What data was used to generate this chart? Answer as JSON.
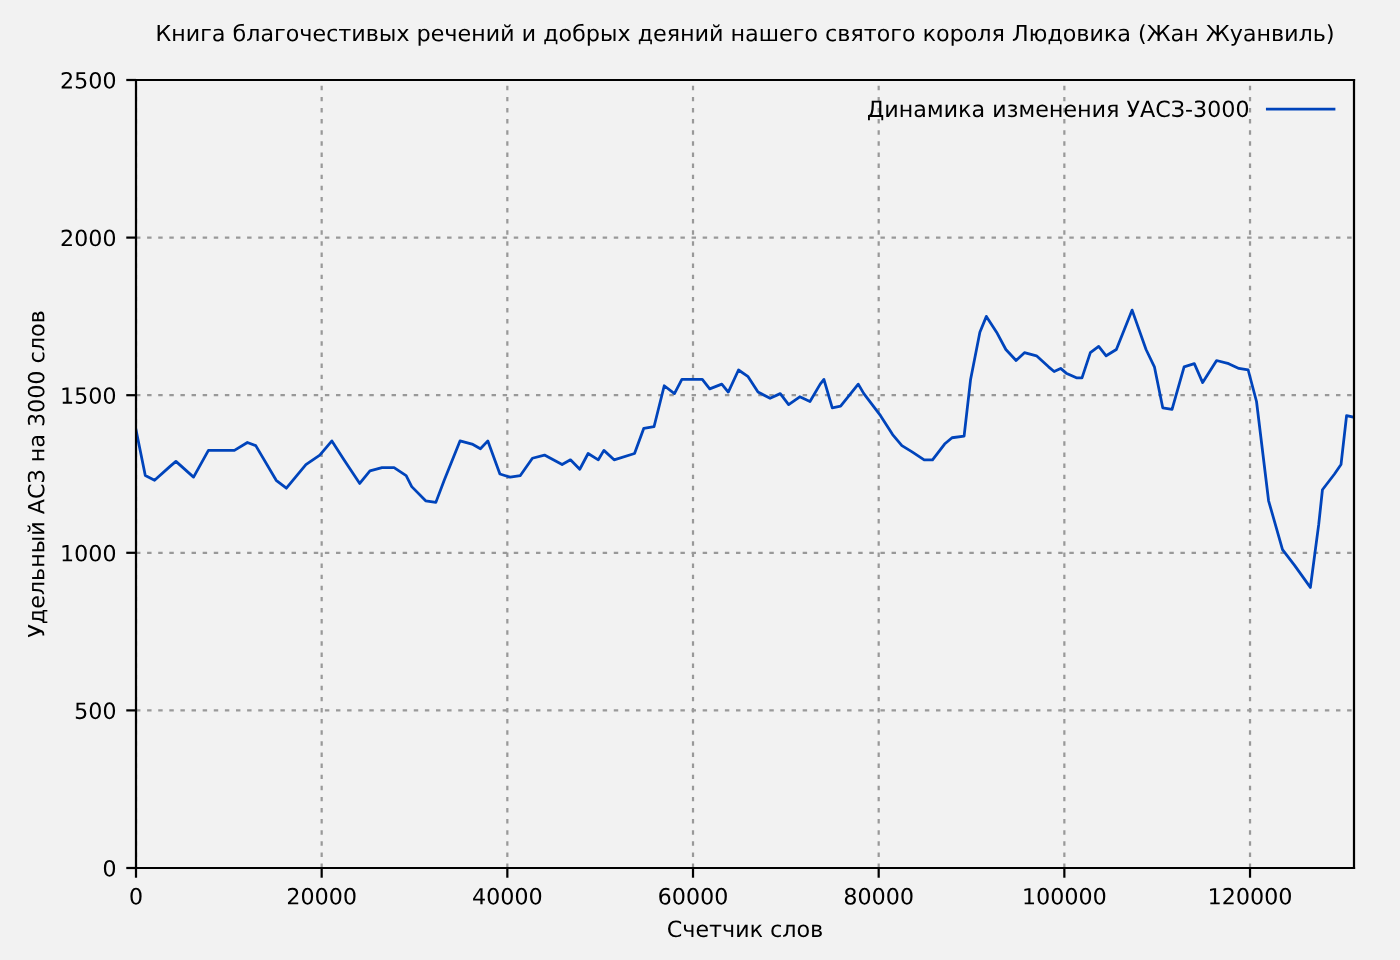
{
  "chart_data": {
    "type": "line",
    "title": "Книга благочестивых речений и добрых деяний нашего святого короля Людовика (Жан Жуанвиль)",
    "xlabel": "Счетчик слов",
    "ylabel": "Удельный АСЗ на 3000 слов",
    "xlim": [
      0,
      131200
    ],
    "ylim": [
      0,
      2500
    ],
    "xticks": [
      0,
      20000,
      40000,
      60000,
      80000,
      100000,
      120000
    ],
    "yticks": [
      0,
      500,
      1000,
      1500,
      2000,
      2500
    ],
    "grid": true,
    "legend": "top right",
    "marker": "none",
    "line_style": "solid",
    "series": [
      {
        "name": "Динамика изменения УАСЗ-3000",
        "color": "#0044bb",
        "x": [
          0,
          1000,
          2000,
          3700,
          4300,
          6200,
          7800,
          10600,
          12000,
          12900,
          15100,
          16200,
          18300,
          19800,
          21100,
          22400,
          24100,
          25200,
          26500,
          27800,
          29100,
          29700,
          31200,
          32300,
          33200,
          34900,
          36200,
          37100,
          37900,
          39200,
          40300,
          41400,
          42700,
          44000,
          45900,
          46800,
          47800,
          48700,
          49800,
          50400,
          51500,
          53700,
          54700,
          55800,
          56900,
          58000,
          58800,
          61000,
          61800,
          63100,
          63800,
          64900,
          65900,
          67000,
          68300,
          69400,
          70300,
          71500,
          72600,
          73700,
          74100,
          75000,
          75900,
          77800,
          78400,
          80200,
          81500,
          82500,
          83600,
          84900,
          85800,
          87100,
          87900,
          89200,
          89900,
          90900,
          91600,
          92700,
          93700,
          94800,
          95700,
          97000,
          98300,
          98900,
          99600,
          100200,
          101300,
          101900,
          102800,
          103700,
          104500,
          105600,
          107300,
          108800,
          109700,
          110600,
          111600,
          112900,
          114000,
          114900,
          116400,
          117700,
          118800,
          119800,
          120700,
          122000,
          123500,
          124800,
          125900,
          126500,
          127400,
          127800,
          129100,
          129800,
          130400,
          131200
        ],
        "values": [
          1390,
          1245,
          1230,
          1275,
          1290,
          1240,
          1325,
          1325,
          1350,
          1340,
          1230,
          1205,
          1280,
          1310,
          1355,
          1295,
          1220,
          1260,
          1270,
          1270,
          1245,
          1210,
          1165,
          1160,
          1230,
          1355,
          1345,
          1330,
          1355,
          1250,
          1240,
          1245,
          1300,
          1310,
          1280,
          1295,
          1265,
          1315,
          1295,
          1325,
          1295,
          1315,
          1395,
          1400,
          1530,
          1505,
          1550,
          1550,
          1520,
          1535,
          1510,
          1580,
          1560,
          1510,
          1490,
          1505,
          1470,
          1495,
          1480,
          1535,
          1550,
          1460,
          1465,
          1535,
          1505,
          1435,
          1375,
          1340,
          1320,
          1295,
          1295,
          1345,
          1365,
          1370,
          1550,
          1700,
          1750,
          1700,
          1645,
          1610,
          1635,
          1625,
          1590,
          1575,
          1585,
          1570,
          1555,
          1555,
          1635,
          1655,
          1625,
          1645,
          1770,
          1645,
          1590,
          1460,
          1455,
          1590,
          1600,
          1540,
          1610,
          1600,
          1585,
          1580,
          1480,
          1165,
          1010,
          960,
          915,
          890,
          1090,
          1200,
          1250,
          1280,
          1435,
          1430
        ]
      }
    ]
  }
}
